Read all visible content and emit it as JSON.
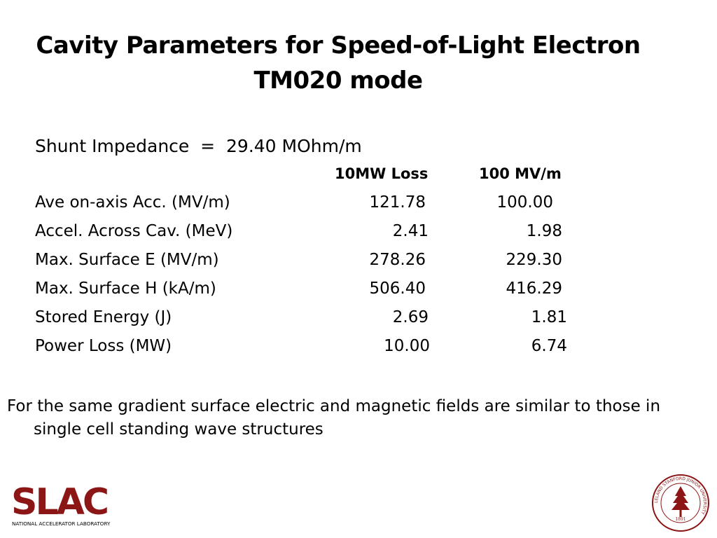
{
  "slide": {
    "title_line1": "Cavity Parameters for Speed-of-Light Electron",
    "title_line2": "TM020 mode",
    "shunt_impedance": "Shunt Impedance  =  29.40 MOhm/m",
    "column_headers": [
      "10MW Loss",
      "100 MV/m"
    ],
    "rows": [
      {
        "label": "Ave on-axis Acc.  (MV/m)",
        "loss_10mw": "121.78",
        "at_100mvm": "100.00"
      },
      {
        "label": "Accel. Across Cav. (MeV)",
        "loss_10mw": "2.41",
        "at_100mvm": "1.98"
      },
      {
        "label": "Max. Surface E (MV/m)",
        "loss_10mw": "278.26",
        "at_100mvm": "229.30"
      },
      {
        "label": "Max. Surface H (kA/m)",
        "loss_10mw": "506.40",
        "at_100mvm": "416.29"
      },
      {
        "label": "Stored Energy (J)",
        "loss_10mw": "2.69",
        "at_100mvm": "1.81"
      },
      {
        "label": "Power Loss (MW)",
        "loss_10mw": "10.00",
        "at_100mvm": "6.74"
      }
    ],
    "note": "For the same gradient surface electric and magnetic fields are similar to those in single cell standing wave structures"
  },
  "logos": {
    "slac_text": "SLAC",
    "slac_subtitle": "NATIONAL ACCELERATOR LABORATORY",
    "seal_text": "LELAND STANFORD JUNIOR UNIVERSITY",
    "seal_year": "1891",
    "brand_color": "#8c1515"
  }
}
